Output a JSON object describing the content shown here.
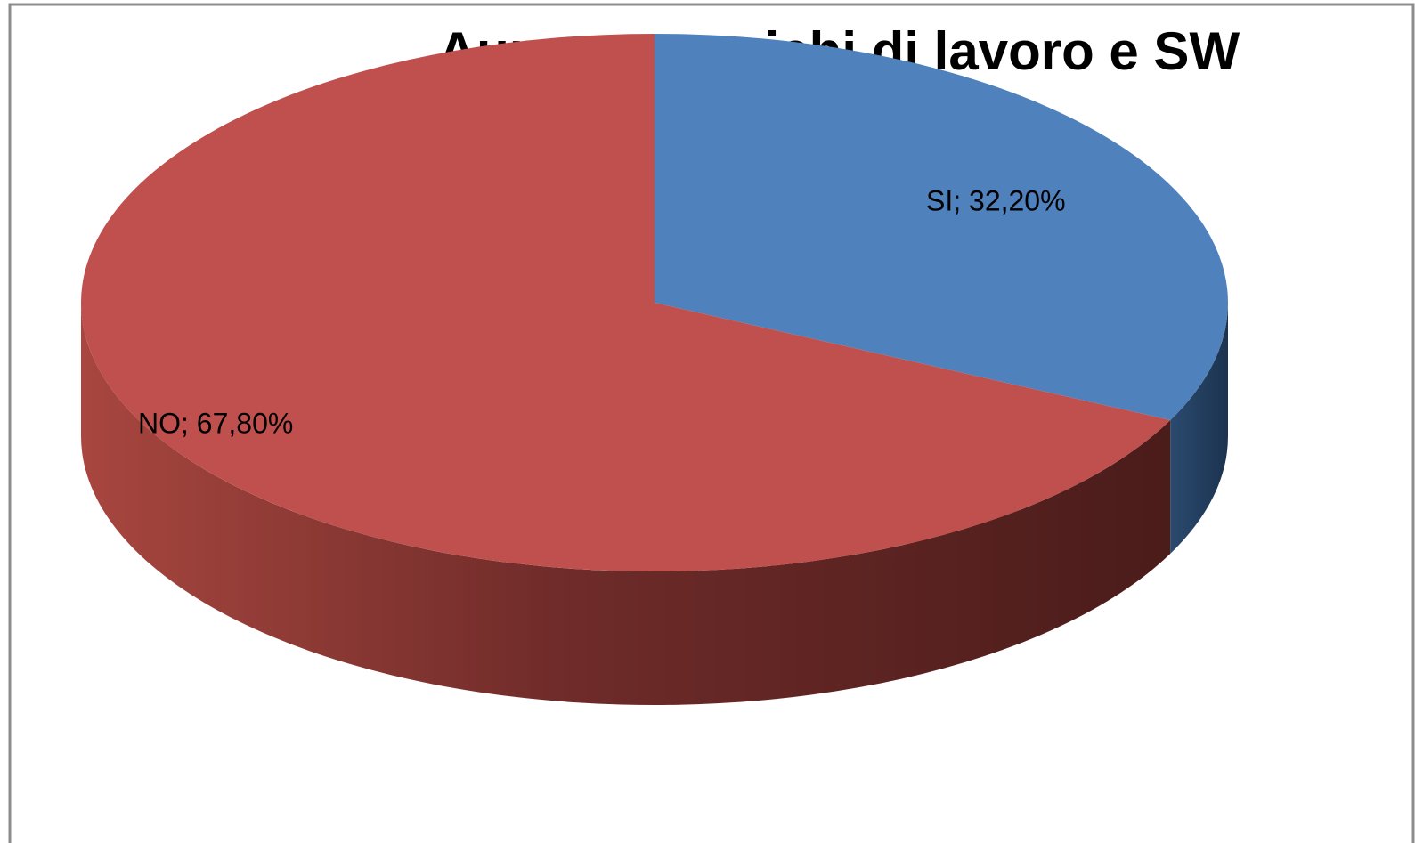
{
  "chart_data": {
    "type": "pie3d",
    "title": "Aumento carichi di lavoro e SW",
    "values": [
      32.2,
      67.8
    ],
    "value_labels": [
      "SI; 32,20%",
      "NO; 67,80%"
    ],
    "colors": [
      "#4f81bd",
      "#c0504d"
    ],
    "start_angle": 0,
    "direction": "clockwise"
  }
}
